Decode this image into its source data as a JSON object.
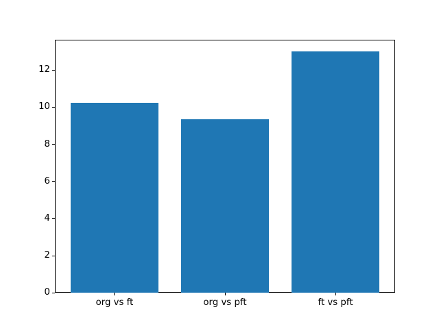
{
  "figure": {
    "background": "#ffffff"
  },
  "chart_data": {
    "type": "bar",
    "categories": [
      "org vs ft",
      "org vs pft",
      "ft vs pft"
    ],
    "values": [
      10.24,
      9.36,
      13.0
    ],
    "title": "",
    "xlabel": "",
    "ylabel": "",
    "bar_color": "#1f77b4",
    "spine_color": "#000000",
    "tick_color": "#000000",
    "ylim": [
      0,
      13.65
    ],
    "xlim": [
      -0.54,
      2.54
    ],
    "bar_width": 0.8,
    "yticks": [
      0,
      2,
      4,
      6,
      8,
      10,
      12
    ],
    "grid": false,
    "legend": "none"
  }
}
